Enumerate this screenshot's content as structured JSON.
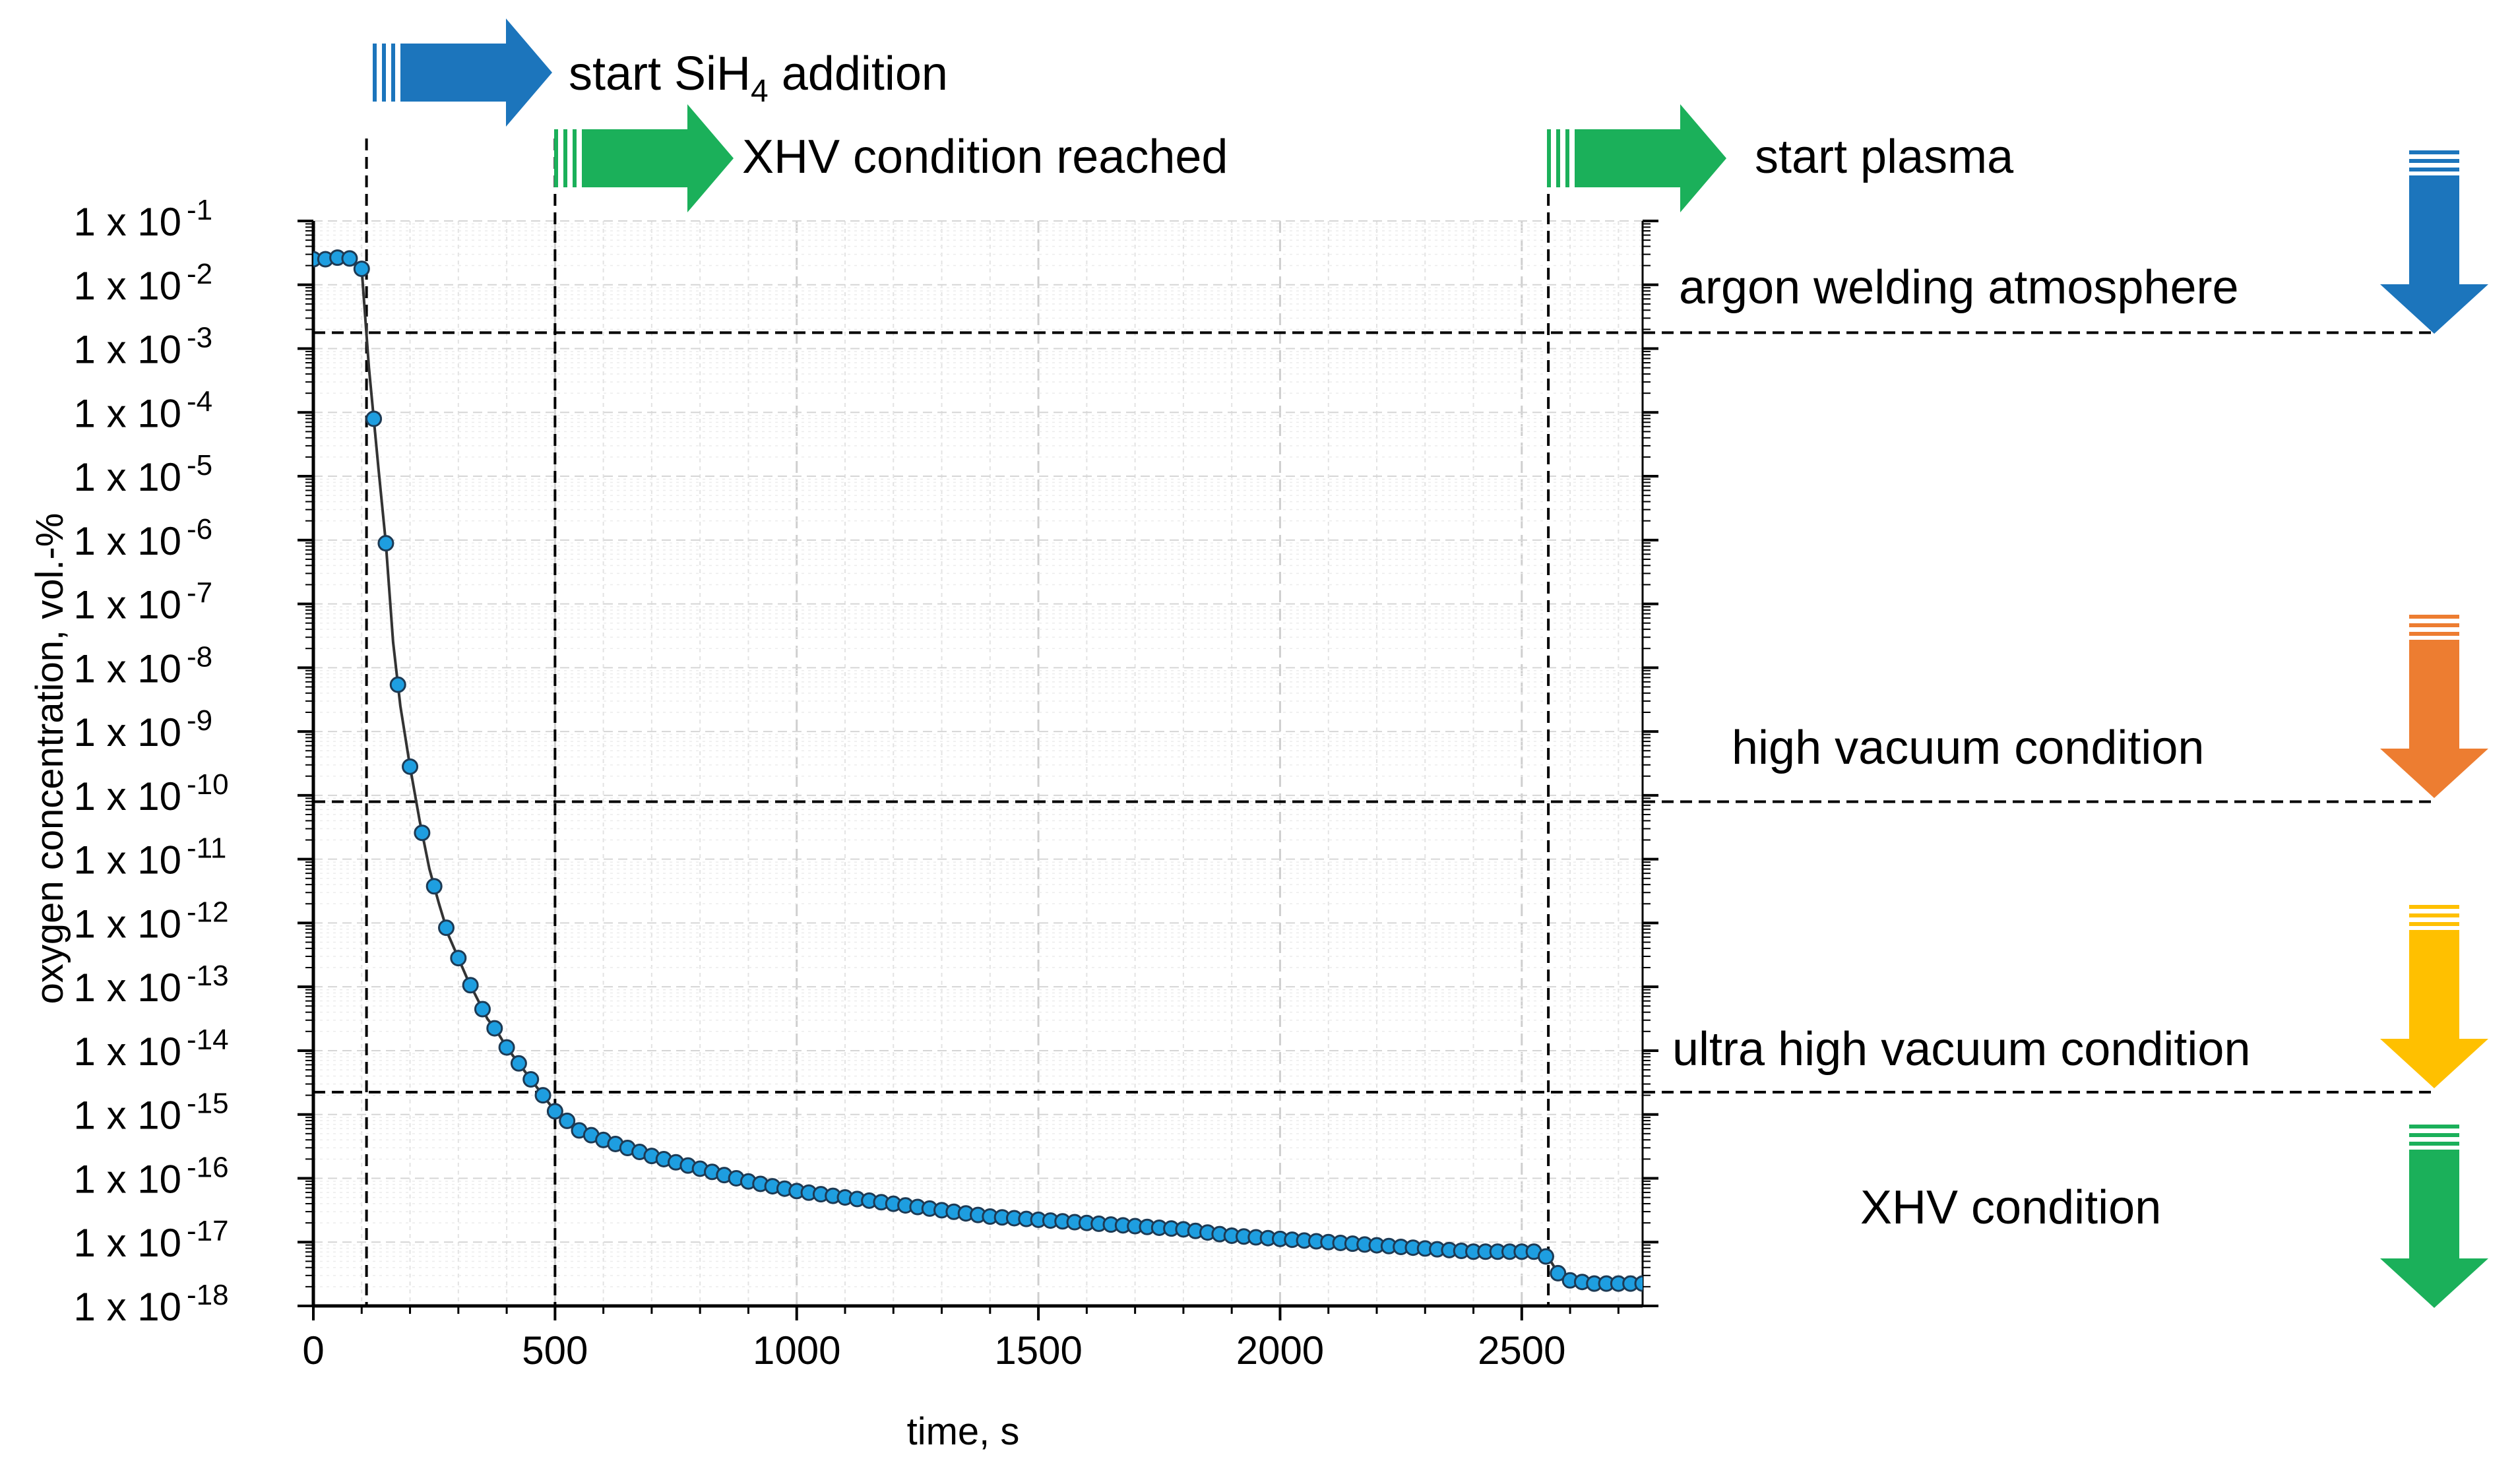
{
  "chart_data": {
    "type": "scatter",
    "title": "",
    "xlabel": "time, s",
    "ylabel": "oxygen concentration, vol.-%",
    "xlim": [
      0,
      2750
    ],
    "ylim_log10": [
      -18,
      -1
    ],
    "x_ticks": [
      0,
      500,
      1000,
      1500,
      2000,
      2500
    ],
    "x_tick_labels": [
      "0",
      "500",
      "1000",
      "1500",
      "2000",
      "2500"
    ],
    "y_ticks_log10": [
      -1,
      -2,
      -3,
      -4,
      -5,
      -6,
      -7,
      -8,
      -9,
      -10,
      -11,
      -12,
      -13,
      -14,
      -15,
      -16,
      -17,
      -18
    ],
    "y_tick_prefix": "1 x 10",
    "y_tick_exponents": [
      "-1",
      "-2",
      "-3",
      "-4",
      "-5",
      "-6",
      "-7",
      "-8",
      "-9",
      "-10",
      "-11",
      "-12",
      "-13",
      "-14",
      "-15",
      "-16",
      "-17",
      "-18"
    ],
    "grid": true,
    "series": [
      {
        "name": "oxygen concentration",
        "color": "#1e9ee0",
        "x": [
          0,
          20,
          40,
          60,
          80,
          100,
          115,
          135,
          150,
          165,
          180,
          200,
          220,
          240,
          260,
          280,
          300,
          320,
          340,
          360,
          380,
          400,
          420,
          440,
          460,
          480,
          500,
          550,
          600,
          700,
          800,
          900,
          1000,
          1100,
          1200,
          1300,
          1400,
          1500,
          1600,
          1700,
          1800,
          1900,
          2000,
          2100,
          2200,
          2300,
          2400,
          2500,
          2540,
          2560,
          2580,
          2600,
          2650,
          2700,
          2750
        ],
        "log10_y": [
          -1.6,
          -1.6,
          -1.6,
          -1.55,
          -1.6,
          -1.75,
          -3.3,
          -4.9,
          -6.05,
          -7.6,
          -8.6,
          -9.55,
          -10.4,
          -11.15,
          -11.7,
          -12.2,
          -12.55,
          -12.9,
          -13.2,
          -13.5,
          -13.7,
          -13.95,
          -14.15,
          -14.35,
          -14.55,
          -14.75,
          -14.95,
          -15.25,
          -15.4,
          -15.65,
          -15.85,
          -16.05,
          -16.2,
          -16.3,
          -16.4,
          -16.5,
          -16.6,
          -16.65,
          -16.7,
          -16.75,
          -16.8,
          -16.9,
          -16.95,
          -17.0,
          -17.05,
          -17.1,
          -17.15,
          -17.15,
          -17.15,
          -17.3,
          -17.55,
          -17.6,
          -17.65,
          -17.65,
          -17.65
        ]
      }
    ],
    "vertical_markers": [
      {
        "x": 110,
        "label_main": "start SiH",
        "label_sub": "4",
        "label_tail": " addition",
        "color": "#1c75bc"
      },
      {
        "x": 500,
        "label_main": "XHV condition reached",
        "color": "#1bb05a"
      },
      {
        "x": 2555,
        "label_main": "start plasma",
        "color": "#1bb05a"
      }
    ],
    "horizontal_thresholds": [
      {
        "log10_y": -2.75,
        "label": "argon welding atmosphere",
        "color": "#1c75bc"
      },
      {
        "log10_y": -10.1,
        "label": "high vacuum condition",
        "color": "#ed7d31"
      },
      {
        "log10_y": -14.65,
        "label": "ultra high vacuum condition",
        "color": "#ffc000"
      }
    ],
    "region_label": {
      "label": "XHV condition",
      "color": "#1bb05a"
    }
  }
}
